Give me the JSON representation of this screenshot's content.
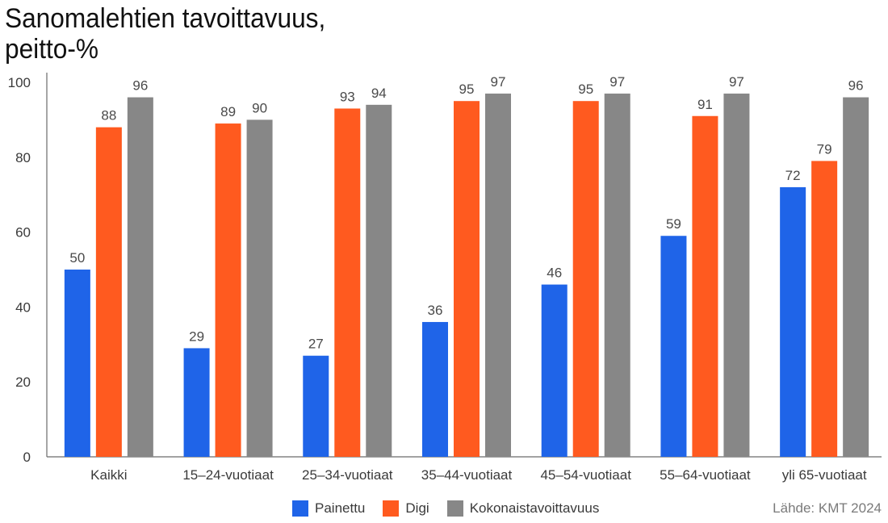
{
  "chart_data": {
    "type": "bar",
    "title": "Sanomalehtien tavoittavuus,",
    "subtitle": "peitto-%",
    "categories": [
      "Kaikki",
      "15–24-vuotiaat",
      "25–34-vuotiaat",
      "35–44-vuotiaat",
      "45–54-vuotiaat",
      "55–64-vuotiaat",
      "yli 65-vuotiaat"
    ],
    "series": [
      {
        "name": "Painettu",
        "color": "#1f64e8",
        "values": [
          50,
          29,
          27,
          36,
          46,
          59,
          72
        ]
      },
      {
        "name": "Digi",
        "color": "#ff5a1f",
        "values": [
          88,
          89,
          93,
          95,
          95,
          91,
          79
        ]
      },
      {
        "name": "Kokonaistavoittavuus",
        "color": "#878787",
        "values": [
          96,
          90,
          94,
          97,
          97,
          97,
          96
        ]
      }
    ],
    "ylim": [
      0,
      100
    ],
    "yticks": [
      0,
      20,
      40,
      60,
      80,
      100
    ],
    "grid": false,
    "legend_position": "bottom-center",
    "source": "Lähde: KMT 2024"
  }
}
